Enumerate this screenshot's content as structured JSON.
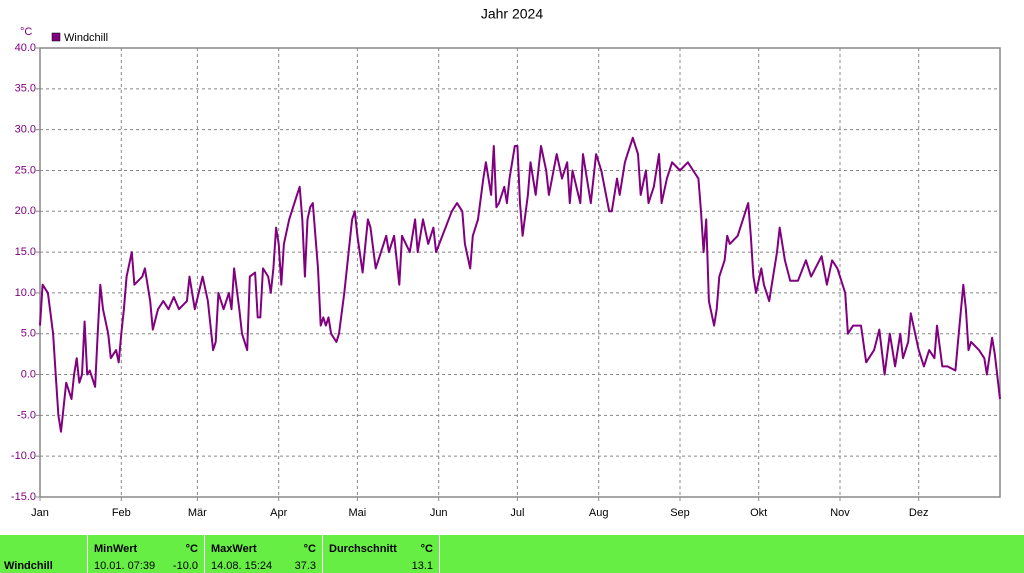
{
  "chart_data": {
    "type": "line",
    "title": "Jahr 2024",
    "y_label": "°C",
    "x": [
      0,
      1,
      3,
      5,
      6,
      7,
      8,
      9,
      10,
      12,
      13,
      14,
      15,
      16,
      17,
      18,
      19,
      21,
      22,
      23,
      24,
      26,
      27,
      29,
      30,
      31,
      32,
      33,
      35,
      36,
      39,
      40,
      42,
      43,
      45,
      47,
      49,
      51,
      53,
      56,
      57,
      59,
      62,
      64,
      65,
      66,
      67,
      68,
      70,
      72,
      73,
      74,
      76,
      77,
      79,
      80,
      82,
      83,
      84,
      85,
      87,
      88,
      89,
      90,
      91,
      92,
      93,
      95,
      98,
      99,
      100,
      101,
      102,
      103,
      104,
      106,
      107,
      108,
      109,
      110,
      111,
      113,
      114,
      116,
      117,
      119,
      120,
      121,
      123,
      125,
      126,
      128,
      130,
      132,
      133,
      135,
      137,
      138,
      141,
      143,
      144,
      146,
      148,
      150,
      151,
      157,
      159,
      161,
      162,
      164,
      165,
      167,
      169,
      170,
      172,
      173,
      174,
      175,
      177,
      178,
      179,
      181,
      182,
      183,
      184,
      186,
      187,
      189,
      191,
      193,
      194,
      197,
      199,
      201,
      202,
      203,
      206,
      207,
      210,
      212,
      214,
      217,
      218,
      220,
      221,
      223,
      224,
      226,
      228,
      229,
      231,
      232,
      234,
      236,
      237,
      239,
      241,
      244,
      247,
      249,
      251,
      252,
      253,
      254,
      255,
      257,
      258,
      259,
      261,
      262,
      263,
      266,
      270,
      271,
      272,
      273,
      275,
      276,
      278,
      279,
      281,
      282,
      284,
      286,
      289,
      292,
      294,
      298,
      300,
      302,
      304,
      307,
      308,
      310,
      313,
      315,
      318,
      320,
      322,
      324,
      325,
      326,
      328,
      329,
      331,
      332,
      333,
      335,
      337,
      339,
      341,
      342,
      344,
      346,
      349,
      350,
      352,
      353,
      354,
      355,
      358,
      360,
      361,
      363,
      364,
      366
    ],
    "series": [
      {
        "name": "Windchill",
        "color": "#800080",
        "values": [
          6,
          11,
          10,
          5,
          0,
          -5,
          -7,
          -4,
          -1,
          -3,
          0,
          2,
          -1,
          0,
          6.5,
          0,
          0.5,
          -1.5,
          5,
          11,
          8,
          5,
          2,
          3,
          1.5,
          5,
          8,
          12,
          15,
          11,
          12,
          13,
          9,
          5.5,
          8,
          9,
          8,
          9.5,
          8,
          9,
          12,
          8,
          12,
          9,
          6,
          3,
          4,
          10,
          8,
          10,
          8,
          13,
          8,
          5,
          3,
          12,
          12.5,
          7,
          7,
          13,
          12,
          10,
          13,
          18,
          16,
          11,
          16,
          19,
          22,
          23,
          19,
          12,
          19,
          20.5,
          21,
          13,
          6,
          7,
          6,
          7,
          5,
          4,
          5,
          10,
          13,
          19,
          20,
          17,
          12.5,
          19,
          18,
          13,
          15,
          17,
          15,
          17,
          11,
          17,
          15,
          19,
          15,
          19,
          16,
          18,
          15,
          20,
          21,
          20,
          16,
          13,
          17,
          19,
          24,
          26,
          22,
          28,
          20.5,
          21,
          23,
          21,
          24,
          28,
          28,
          21,
          17,
          22,
          26,
          22,
          28,
          25,
          22,
          27,
          24,
          26,
          21,
          25,
          21,
          27,
          21,
          27,
          25,
          20,
          20,
          24,
          22,
          26,
          27,
          29,
          27,
          22,
          25,
          21,
          23,
          27,
          21,
          24,
          26,
          25,
          26,
          25,
          24,
          20,
          15,
          19,
          9,
          6,
          8,
          12,
          14,
          17,
          16,
          17,
          21,
          17,
          12,
          10,
          13,
          11,
          9,
          11,
          15,
          18,
          14,
          11.5,
          11.5,
          14,
          12,
          14.5,
          11,
          14,
          13,
          10,
          5,
          6,
          6,
          1.5,
          3,
          5.5,
          0,
          5,
          3,
          1,
          5,
          2,
          4,
          7.5,
          6,
          3,
          1,
          3,
          2,
          6,
          1,
          1,
          0.5,
          4,
          11,
          8,
          3,
          4,
          3,
          2,
          0,
          4.5,
          2.5,
          -3
        ]
      }
    ],
    "xlim": [
      0,
      366
    ],
    "xticks": [
      {
        "value": 0,
        "label": "Jan"
      },
      {
        "value": 31,
        "label": "Feb"
      },
      {
        "value": 60,
        "label": "Mär"
      },
      {
        "value": 91,
        "label": "Apr"
      },
      {
        "value": 121,
        "label": "Mai"
      },
      {
        "value": 152,
        "label": "Jun"
      },
      {
        "value": 182,
        "label": "Jul"
      },
      {
        "value": 213,
        "label": "Aug"
      },
      {
        "value": 244,
        "label": "Sep"
      },
      {
        "value": 274,
        "label": "Okt"
      },
      {
        "value": 305,
        "label": "Nov"
      },
      {
        "value": 335,
        "label": "Dez"
      }
    ],
    "ylim": [
      -15,
      40
    ],
    "yticks": [
      {
        "value": -15,
        "label": "-15.0"
      },
      {
        "value": -10,
        "label": "-10.0"
      },
      {
        "value": -5,
        "label": "-5.0"
      },
      {
        "value": 0,
        "label": "0.0"
      },
      {
        "value": 5,
        "label": "5.0"
      },
      {
        "value": 10,
        "label": "10.0"
      },
      {
        "value": 15,
        "label": "15.0"
      },
      {
        "value": 20,
        "label": "20.0"
      },
      {
        "value": 25,
        "label": "25.0"
      },
      {
        "value": 30,
        "label": "30.0"
      },
      {
        "value": 35,
        "label": "35.0"
      },
      {
        "value": 40,
        "label": "40.0"
      }
    ],
    "grid": true,
    "legend": "top-left"
  },
  "table": {
    "row_label": "Windchill",
    "columns": [
      {
        "header": "MinWert",
        "unit": "°C",
        "time": "10.01. 07:39",
        "value": "-10.0"
      },
      {
        "header": "MaxWert",
        "unit": "°C",
        "time": "14.08. 15:24",
        "value": "37.3"
      },
      {
        "header": "Durchschnitt",
        "unit": "°C",
        "value": "13.1"
      }
    ]
  }
}
